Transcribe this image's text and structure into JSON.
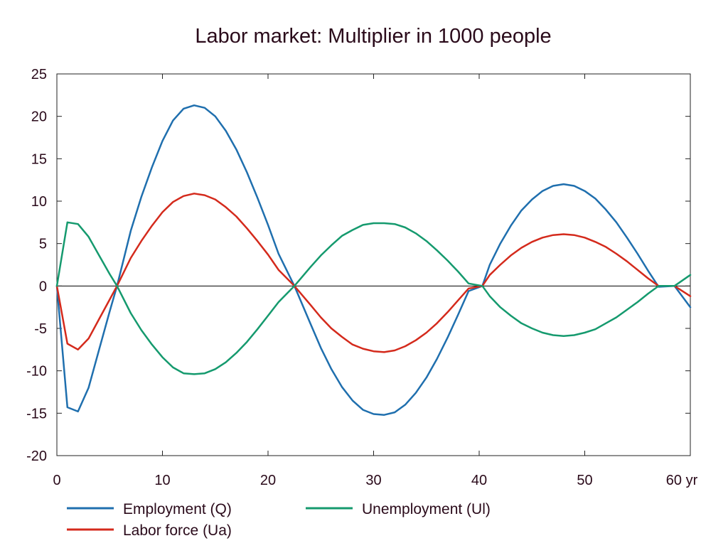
{
  "chart_data": {
    "type": "line",
    "title": "Labor market: Multiplier in 1000 people",
    "x_unit_label": "yr",
    "xlim": [
      0,
      60
    ],
    "ylim": [
      -20,
      25
    ],
    "x_ticks": [
      0,
      10,
      20,
      30,
      40,
      50,
      60
    ],
    "x_tick_labels": [
      "0",
      "10",
      "20",
      "30",
      "40",
      "50",
      "60 yr"
    ],
    "y_ticks": [
      25,
      20,
      15,
      10,
      5,
      0,
      -5,
      -10,
      -15,
      -20
    ],
    "y_tick_labels": [
      "25",
      "20",
      "15",
      "10",
      "5",
      "0",
      "-5",
      "-10",
      "-15",
      "-20"
    ],
    "grid": false,
    "zero_line": true,
    "legend_position": "bottom",
    "x": [
      0,
      1,
      2,
      3,
      4,
      5,
      5.7,
      7,
      8,
      9,
      10,
      11,
      12,
      13,
      14,
      15,
      16,
      17,
      18,
      19,
      20,
      21,
      22.5,
      24,
      25,
      26,
      27,
      28,
      29,
      30,
      31,
      32,
      33,
      34,
      35,
      36,
      37,
      38,
      39,
      40.3,
      41,
      42,
      43,
      44,
      45,
      46,
      47,
      48,
      49,
      50,
      51,
      52,
      53,
      54,
      55,
      56,
      57,
      58.5,
      60
    ],
    "series": [
      {
        "name": "Employment (Q)",
        "color": "#1f6fae",
        "values": [
          0,
          -14.3,
          -14.8,
          -12,
          -7.5,
          -3,
          0,
          6.5,
          10.5,
          14,
          17.1,
          19.5,
          20.9,
          21.3,
          21.0,
          20.0,
          18.3,
          16.1,
          13.4,
          10.4,
          7.2,
          3.8,
          0,
          -4.4,
          -7.3,
          -9.8,
          -11.9,
          -13.5,
          -14.6,
          -15.1,
          -15.2,
          -14.9,
          -14.0,
          -12.6,
          -10.8,
          -8.6,
          -6.1,
          -3.4,
          -0.6,
          0,
          2.5,
          5.0,
          7.1,
          8.9,
          10.2,
          11.2,
          11.8,
          12.0,
          11.8,
          11.2,
          10.3,
          9.0,
          7.5,
          5.7,
          3.8,
          1.8,
          -0.1,
          0,
          -2.5
        ]
      },
      {
        "name": "Labor force (Ua)",
        "color": "#d42a1c",
        "values": [
          0,
          -6.8,
          -7.5,
          -6.2,
          -3.9,
          -1.6,
          0,
          3.3,
          5.3,
          7.1,
          8.7,
          9.9,
          10.6,
          10.9,
          10.7,
          10.2,
          9.3,
          8.2,
          6.8,
          5.3,
          3.7,
          1.9,
          0,
          -2.2,
          -3.7,
          -5.0,
          -6.0,
          -6.9,
          -7.4,
          -7.7,
          -7.8,
          -7.6,
          -7.1,
          -6.4,
          -5.5,
          -4.4,
          -3.1,
          -1.7,
          -0.3,
          0,
          1.3,
          2.5,
          3.6,
          4.5,
          5.2,
          5.7,
          6.0,
          6.1,
          6.0,
          5.7,
          5.2,
          4.6,
          3.8,
          2.9,
          1.9,
          0.9,
          0,
          0,
          -1.2
        ]
      },
      {
        "name": "Unemployment (Ul)",
        "color": "#159a6e",
        "values": [
          0,
          7.5,
          7.3,
          5.8,
          3.6,
          1.4,
          0,
          -3.2,
          -5.2,
          -6.9,
          -8.4,
          -9.6,
          -10.3,
          -10.4,
          -10.3,
          -9.8,
          -9.0,
          -7.9,
          -6.6,
          -5.1,
          -3.5,
          -1.9,
          0,
          2.2,
          3.6,
          4.8,
          5.9,
          6.6,
          7.2,
          7.4,
          7.4,
          7.3,
          6.9,
          6.2,
          5.3,
          4.2,
          3.0,
          1.7,
          0.3,
          0,
          -1.2,
          -2.5,
          -3.5,
          -4.4,
          -5.0,
          -5.5,
          -5.8,
          -5.9,
          -5.8,
          -5.5,
          -5.1,
          -4.4,
          -3.7,
          -2.8,
          -1.9,
          -0.9,
          0,
          0,
          1.3
        ]
      }
    ]
  }
}
